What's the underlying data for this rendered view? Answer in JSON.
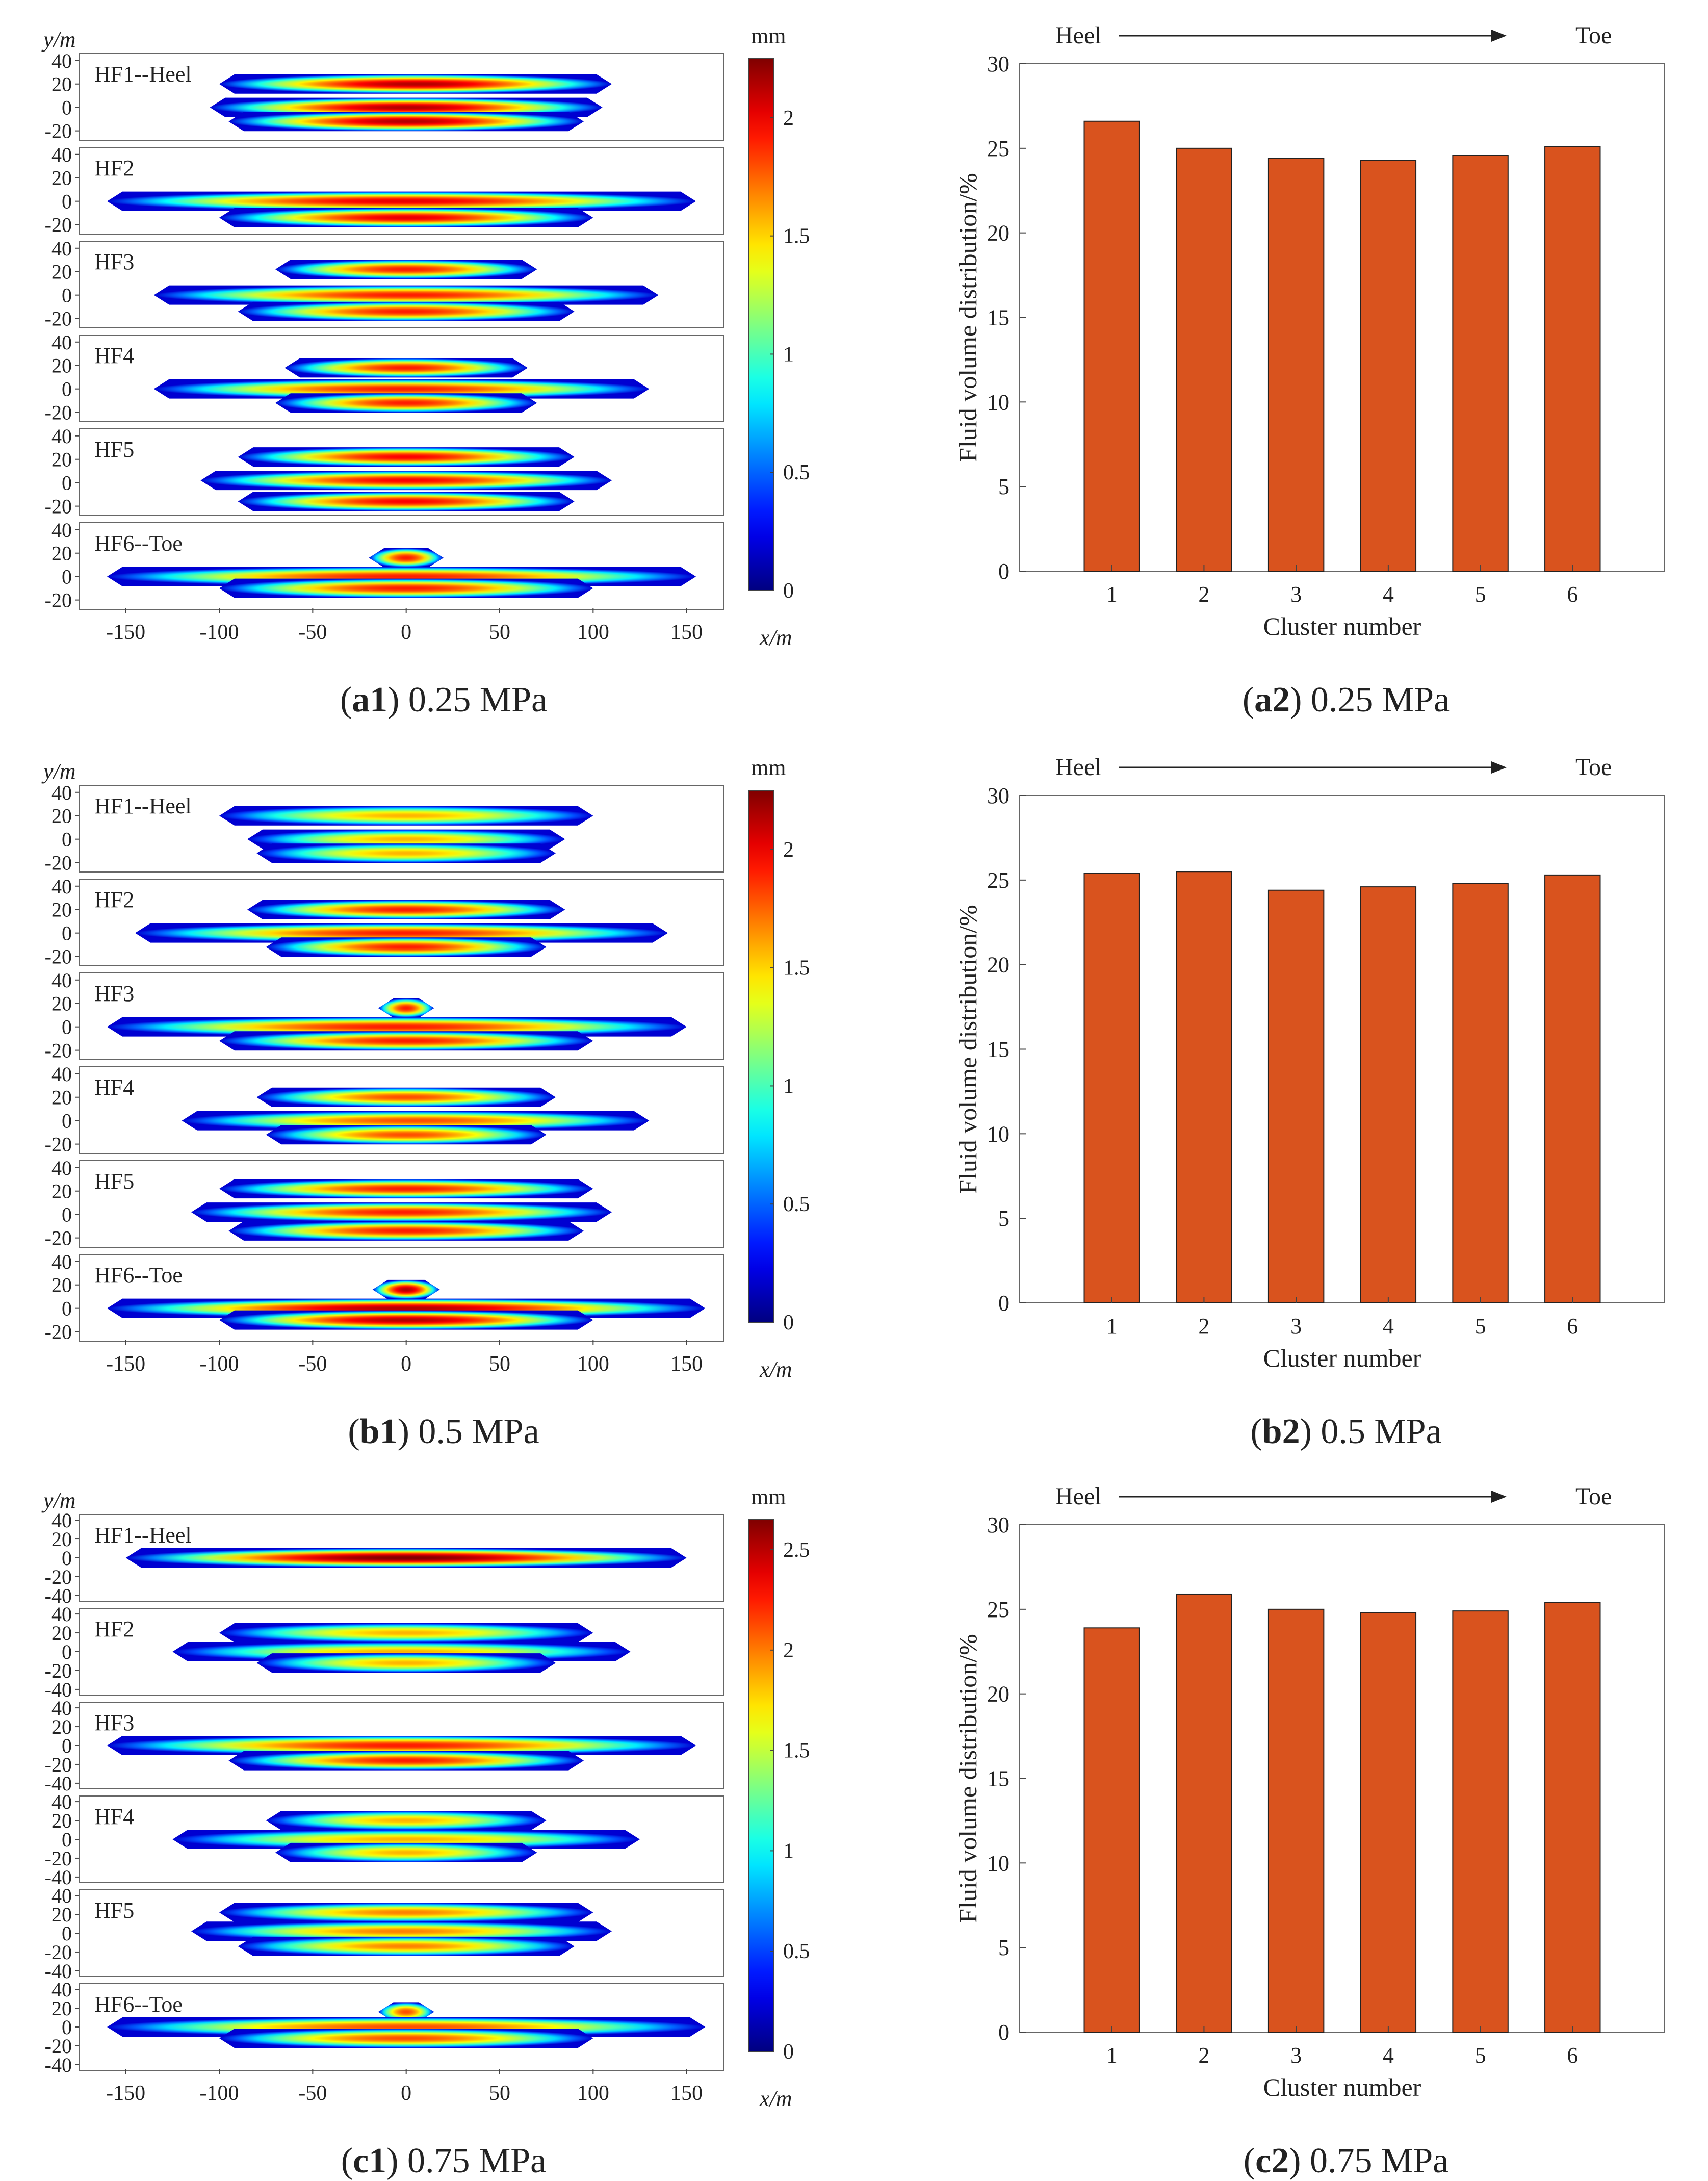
{
  "figure": {
    "panels": [
      {
        "id": "a",
        "pressure": "0.25 MPa",
        "caption_left": {
          "label": "a1",
          "text": "0.25 MPa"
        },
        "caption_right": {
          "label": "a2",
          "text": "0.25 MPa"
        },
        "fractures": [
          {
            "label": "HF1--Heel",
            "segments": [
              {
                "y": 20,
                "x_min": -100,
                "x_max": 110
              },
              {
                "y": 0,
                "x_min": -105,
                "x_max": 105
              },
              {
                "y": -12,
                "x_min": -95,
                "x_max": 95
              }
            ],
            "max_level": 0.95
          },
          {
            "label": "HF2",
            "segments": [
              {
                "y": 0,
                "x_min": -160,
                "x_max": 155
              },
              {
                "y": -14,
                "x_min": -100,
                "x_max": 100
              }
            ],
            "max_level": 0.9
          },
          {
            "label": "HF3",
            "segments": [
              {
                "y": 22,
                "x_min": -70,
                "x_max": 70
              },
              {
                "y": 0,
                "x_min": -135,
                "x_max": 135
              },
              {
                "y": -14,
                "x_min": -90,
                "x_max": 90
              }
            ],
            "max_level": 0.85
          },
          {
            "label": "HF4",
            "segments": [
              {
                "y": 18,
                "x_min": -65,
                "x_max": 65
              },
              {
                "y": 0,
                "x_min": -135,
                "x_max": 130
              },
              {
                "y": -12,
                "x_min": -70,
                "x_max": 70
              }
            ],
            "max_level": 0.85
          },
          {
            "label": "HF5",
            "segments": [
              {
                "y": 22,
                "x_min": -90,
                "x_max": 90
              },
              {
                "y": 2,
                "x_min": -110,
                "x_max": 110
              },
              {
                "y": -16,
                "x_min": -90,
                "x_max": 90
              }
            ],
            "max_level": 0.88
          },
          {
            "label": "HF6--Toe",
            "segments": [
              {
                "y": 16,
                "x_min": -20,
                "x_max": 20
              },
              {
                "y": 0,
                "x_min": -160,
                "x_max": 155
              },
              {
                "y": -10,
                "x_min": -100,
                "x_max": 100
              }
            ],
            "max_level": 0.85
          }
        ],
        "colorbar": {
          "unit": "mm",
          "min": 0,
          "max": 2.25,
          "ticks": [
            0,
            0.5,
            1,
            1.5,
            2
          ]
        },
        "y_axis_label": "y/m",
        "x_axis_label": "x/m",
        "y_ticks": [
          40,
          20,
          0,
          -20
        ],
        "x_ticks": [
          -150,
          -100,
          -50,
          0,
          50,
          100,
          150
        ]
      },
      {
        "id": "b",
        "pressure": "0.5 MPa",
        "caption_left": {
          "label": "b1",
          "text": "0.5 MPa"
        },
        "caption_right": {
          "label": "b2",
          "text": "0.5 MPa"
        },
        "fractures": [
          {
            "label": "HF1--Heel",
            "segments": [
              {
                "y": 20,
                "x_min": -100,
                "x_max": 100
              },
              {
                "y": 0,
                "x_min": -85,
                "x_max": 85
              },
              {
                "y": -12,
                "x_min": -80,
                "x_max": 80
              }
            ],
            "max_level": 0.7
          },
          {
            "label": "HF2",
            "segments": [
              {
                "y": 20,
                "x_min": -85,
                "x_max": 85
              },
              {
                "y": 0,
                "x_min": -145,
                "x_max": 140
              },
              {
                "y": -12,
                "x_min": -75,
                "x_max": 75
              }
            ],
            "max_level": 0.85
          },
          {
            "label": "HF3",
            "segments": [
              {
                "y": 16,
                "x_min": -15,
                "x_max": 15
              },
              {
                "y": 0,
                "x_min": -160,
                "x_max": 150
              },
              {
                "y": -12,
                "x_min": -100,
                "x_max": 100
              }
            ],
            "max_level": 0.85
          },
          {
            "label": "HF4",
            "segments": [
              {
                "y": 20,
                "x_min": -80,
                "x_max": 80
              },
              {
                "y": 0,
                "x_min": -120,
                "x_max": 130
              },
              {
                "y": -12,
                "x_min": -75,
                "x_max": 75
              }
            ],
            "max_level": 0.8
          },
          {
            "label": "HF5",
            "segments": [
              {
                "y": 22,
                "x_min": -100,
                "x_max": 100
              },
              {
                "y": 2,
                "x_min": -115,
                "x_max": 110
              },
              {
                "y": -14,
                "x_min": -95,
                "x_max": 95
              }
            ],
            "max_level": 0.85
          },
          {
            "label": "HF6--Toe",
            "segments": [
              {
                "y": 16,
                "x_min": -18,
                "x_max": 18
              },
              {
                "y": 0,
                "x_min": -160,
                "x_max": 160
              },
              {
                "y": -10,
                "x_min": -100,
                "x_max": 100
              }
            ],
            "max_level": 0.95
          }
        ],
        "colorbar": {
          "unit": "mm",
          "min": 0,
          "max": 2.25,
          "ticks": [
            0,
            0.5,
            1,
            1.5,
            2
          ]
        },
        "y_axis_label": "y/m",
        "x_axis_label": "x/m",
        "y_ticks": [
          40,
          20,
          0,
          -20
        ],
        "x_ticks": [
          -150,
          -100,
          -50,
          0,
          50,
          100,
          150
        ]
      },
      {
        "id": "c",
        "pressure": "0.75 MPa",
        "caption_left": {
          "label": "c1",
          "text": "0.75 MPa"
        },
        "caption_right": {
          "label": "c2",
          "text": "0.75 MPa"
        },
        "fractures": [
          {
            "label": "HF1--Heel",
            "segments": [
              {
                "y": 0,
                "x_min": -150,
                "x_max": 150
              }
            ],
            "max_level": 1.0
          },
          {
            "label": "HF2",
            "segments": [
              {
                "y": 20,
                "x_min": -100,
                "x_max": 100
              },
              {
                "y": 0,
                "x_min": -125,
                "x_max": 120
              },
              {
                "y": -12,
                "x_min": -80,
                "x_max": 80
              }
            ],
            "max_level": 0.7
          },
          {
            "label": "HF3",
            "segments": [
              {
                "y": 0,
                "x_min": -160,
                "x_max": 155
              },
              {
                "y": -16,
                "x_min": -95,
                "x_max": 95
              }
            ],
            "max_level": 0.85
          },
          {
            "label": "HF4",
            "segments": [
              {
                "y": 20,
                "x_min": -75,
                "x_max": 75
              },
              {
                "y": 0,
                "x_min": -125,
                "x_max": 125
              },
              {
                "y": -14,
                "x_min": -70,
                "x_max": 70
              }
            ],
            "max_level": 0.7
          },
          {
            "label": "HF5",
            "segments": [
              {
                "y": 22,
                "x_min": -100,
                "x_max": 100
              },
              {
                "y": 2,
                "x_min": -115,
                "x_max": 110
              },
              {
                "y": -14,
                "x_min": -90,
                "x_max": 90
              }
            ],
            "max_level": 0.75
          },
          {
            "label": "HF6--Toe",
            "segments": [
              {
                "y": 16,
                "x_min": -15,
                "x_max": 15
              },
              {
                "y": 0,
                "x_min": -160,
                "x_max": 160
              },
              {
                "y": -12,
                "x_min": -100,
                "x_max": 100
              }
            ],
            "max_level": 0.8
          }
        ],
        "colorbar": {
          "unit": "mm",
          "min": 0,
          "max": 2.65,
          "ticks": [
            0,
            0.5,
            1,
            1.5,
            2,
            2.5
          ]
        },
        "y_axis_label": "y/m",
        "x_axis_label": "x/m",
        "y_ticks": [
          40,
          20,
          0,
          -20,
          -40
        ],
        "x_ticks": [
          -150,
          -100,
          -50,
          0,
          50,
          100,
          150
        ]
      }
    ]
  },
  "bar_color": "#d9531e",
  "chart_data": [
    {
      "type": "bar",
      "title": "",
      "arrow_left": "Heel",
      "arrow_right": "Toe",
      "categories": [
        "1",
        "2",
        "3",
        "4",
        "5",
        "6"
      ],
      "values": [
        26.6,
        25.0,
        24.4,
        24.3,
        24.6,
        25.1
      ],
      "xlabel": "Cluster number",
      "ylabel": "Fluid volume distribution/%",
      "ylim": [
        0,
        30
      ],
      "yticks": [
        0,
        5,
        10,
        15,
        20,
        25,
        30
      ]
    },
    {
      "type": "bar",
      "title": "",
      "arrow_left": "Heel",
      "arrow_right": "Toe",
      "categories": [
        "1",
        "2",
        "3",
        "4",
        "5",
        "6"
      ],
      "values": [
        25.4,
        25.5,
        24.4,
        24.6,
        24.8,
        25.3
      ],
      "xlabel": "Cluster number",
      "ylabel": "Fluid volume distribution/%",
      "ylim": [
        0,
        30
      ],
      "yticks": [
        0,
        5,
        10,
        15,
        20,
        25,
        30
      ]
    },
    {
      "type": "bar",
      "title": "",
      "arrow_left": "Heel",
      "arrow_right": "Toe",
      "categories": [
        "1",
        "2",
        "3",
        "4",
        "5",
        "6"
      ],
      "values": [
        23.9,
        25.9,
        25.0,
        24.8,
        24.9,
        25.4
      ],
      "xlabel": "Cluster number",
      "ylabel": "Fluid volume distribution/%",
      "ylim": [
        0,
        30
      ],
      "yticks": [
        0,
        5,
        10,
        15,
        20,
        25,
        30
      ]
    }
  ]
}
